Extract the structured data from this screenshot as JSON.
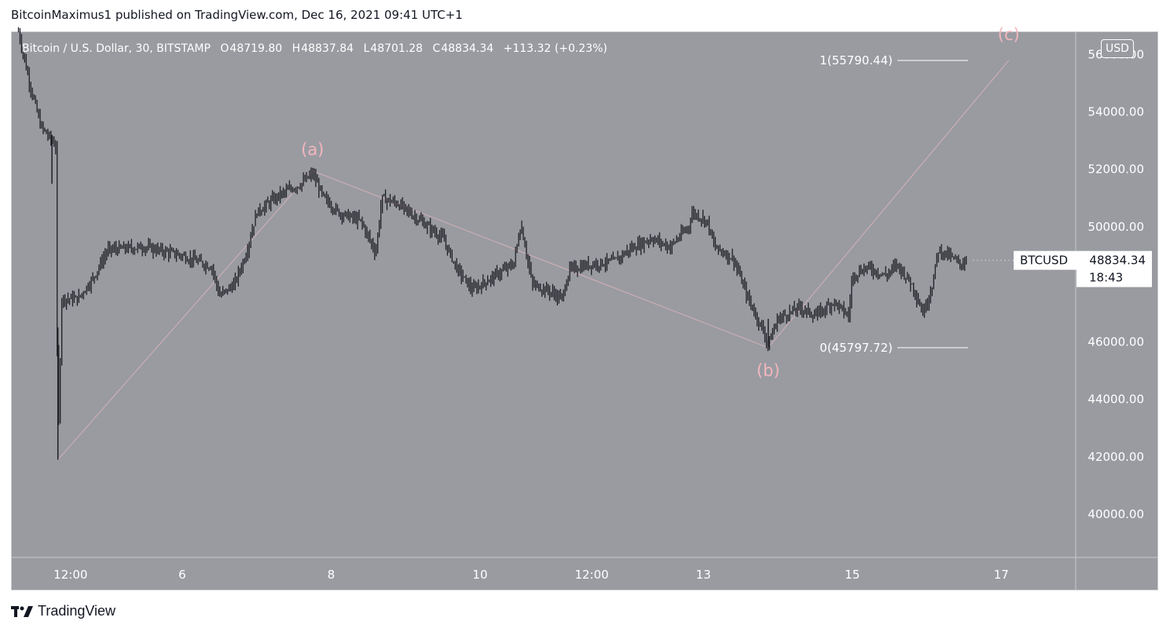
{
  "header": {
    "publisher_line": "BitcoinMaximus1 published on TradingView.com, Dec 16, 2021 09:41 UTC+1"
  },
  "legend": {
    "symbol_line": "Bitcoin / U.S. Dollar, 30, BITSTAMP",
    "open_label": "O",
    "open": "48719.80",
    "high_label": "H",
    "high": "48837.84",
    "low_label": "L",
    "low": "48701.28",
    "close_label": "C",
    "close": "48834.34",
    "change": "+113.32 (+0.23%)"
  },
  "currency_button": "USD",
  "price_tag": {
    "symbol": "BTCUSD",
    "price": "48834.34",
    "countdown": "18:43"
  },
  "footer": {
    "brand": "TradingView"
  },
  "colors": {
    "background": "#999ba1",
    "candle": "#1e1f24",
    "wave_line": "#d4b1b6",
    "wave_label": "#f2b6bd",
    "text_light": "#ffffff",
    "text_dark": "#131722"
  },
  "chart_data": {
    "type": "candlestick",
    "symbol": "Bitcoin / U.S. Dollar",
    "interval": "30",
    "exchange": "BITSTAMP",
    "ylim": [
      38500,
      56800
    ],
    "y_ticks": [
      "56000.00",
      "54000.00",
      "52000.00",
      "50000.00",
      "46000.00",
      "44000.00",
      "42000.00",
      "40000.00"
    ],
    "x_ticks": [
      {
        "label": "12:00",
        "day": 4.5
      },
      {
        "label": "6",
        "day": 6
      },
      {
        "label": "8",
        "day": 8
      },
      {
        "label": "10",
        "day": 10
      },
      {
        "label": "12:00",
        "day": 11.5
      },
      {
        "label": "13",
        "day": 13
      },
      {
        "label": "15",
        "day": 15
      },
      {
        "label": "17",
        "day": 17
      }
    ],
    "xlim": [
      3.7,
      18.0
    ],
    "price_path": [
      [
        3.8,
        56800
      ],
      [
        3.95,
        55000
      ],
      [
        4.1,
        53500
      ],
      [
        4.25,
        53000
      ],
      [
        4.3,
        52800
      ],
      [
        4.33,
        42000
      ],
      [
        4.38,
        47500
      ],
      [
        4.6,
        47500
      ],
      [
        4.8,
        48200
      ],
      [
        5.0,
        49200
      ],
      [
        5.5,
        49300
      ],
      [
        6.0,
        49000
      ],
      [
        6.4,
        48600
      ],
      [
        6.5,
        47600
      ],
      [
        6.7,
        48000
      ],
      [
        6.85,
        49000
      ],
      [
        7.0,
        50500
      ],
      [
        7.3,
        51100
      ],
      [
        7.6,
        51500
      ],
      [
        7.75,
        51850
      ],
      [
        7.9,
        51000
      ],
      [
        8.1,
        50500
      ],
      [
        8.4,
        50200
      ],
      [
        8.6,
        49100
      ],
      [
        8.68,
        51000
      ],
      [
        8.9,
        50800
      ],
      [
        9.2,
        50200
      ],
      [
        9.5,
        49600
      ],
      [
        9.7,
        48500
      ],
      [
        9.9,
        47800
      ],
      [
        10.2,
        48300
      ],
      [
        10.45,
        48700
      ],
      [
        10.55,
        50100
      ],
      [
        10.7,
        48000
      ],
      [
        10.9,
        47800
      ],
      [
        11.1,
        47500
      ],
      [
        11.2,
        48500
      ],
      [
        11.5,
        48700
      ],
      [
        11.8,
        48800
      ],
      [
        12.0,
        49200
      ],
      [
        12.3,
        49600
      ],
      [
        12.55,
        49300
      ],
      [
        12.8,
        50000
      ],
      [
        12.85,
        50500
      ],
      [
        13.05,
        50200
      ],
      [
        13.15,
        49300
      ],
      [
        13.4,
        48900
      ],
      [
        13.6,
        47500
      ],
      [
        13.8,
        46400
      ],
      [
        13.87,
        45900
      ],
      [
        14.0,
        46800
      ],
      [
        14.3,
        47200
      ],
      [
        14.5,
        46900
      ],
      [
        14.75,
        47400
      ],
      [
        14.95,
        46900
      ],
      [
        15.0,
        48300
      ],
      [
        15.2,
        48600
      ],
      [
        15.45,
        48300
      ],
      [
        15.6,
        48700
      ],
      [
        15.8,
        48000
      ],
      [
        15.95,
        47000
      ],
      [
        16.08,
        48000
      ],
      [
        16.15,
        49200
      ],
      [
        16.3,
        49000
      ],
      [
        16.45,
        48700
      ],
      [
        16.55,
        48834
      ]
    ],
    "wave_points": [
      {
        "label": "(a)",
        "day": 7.75,
        "price": 51950
      },
      {
        "label": "(b)",
        "day": 13.87,
        "price": 45797.72
      },
      {
        "label": "(c)",
        "day": 17.1,
        "price": 55790.44
      }
    ],
    "wave_start": {
      "day": 4.33,
      "price": 41900
    },
    "fib_levels": [
      {
        "label": "1(55790.44)",
        "price": 55790.44
      },
      {
        "label": "0(45797.72)",
        "price": 45797.72
      }
    ],
    "last_price": 48834.34
  }
}
